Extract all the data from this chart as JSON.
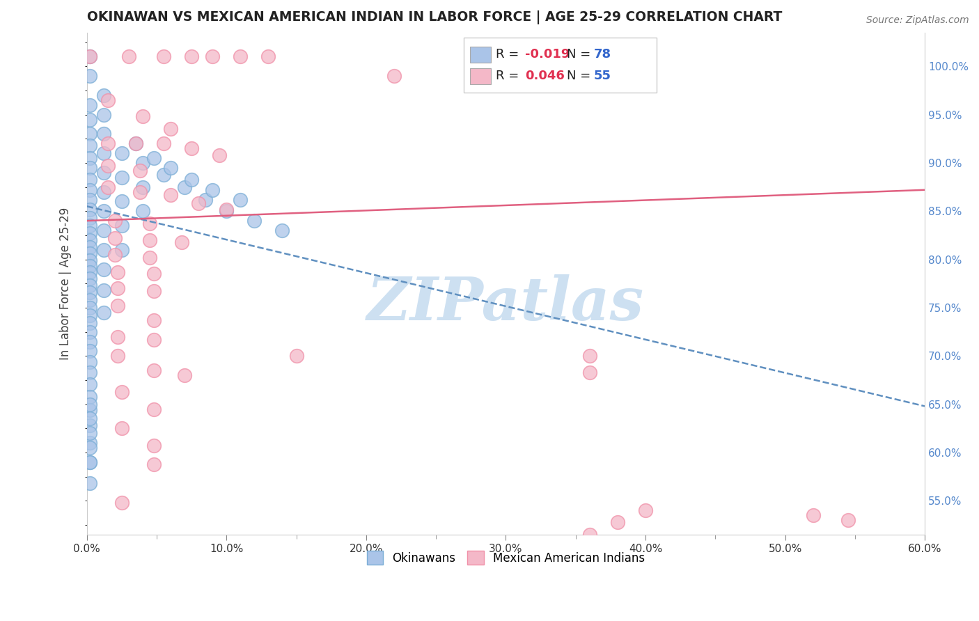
{
  "title": "OKINAWAN VS MEXICAN AMERICAN INDIAN IN LABOR FORCE | AGE 25-29 CORRELATION CHART",
  "source": "Source: ZipAtlas.com",
  "ylabel": "In Labor Force | Age 25-29",
  "xlim": [
    0.0,
    0.6
  ],
  "ylim": [
    0.515,
    1.035
  ],
  "yticks_right": [
    0.55,
    0.6,
    0.65,
    0.7,
    0.75,
    0.8,
    0.85,
    0.9,
    0.95,
    1.0
  ],
  "ytick_labels_right": [
    "55.0%",
    "60.0%",
    "65.0%",
    "70.0%",
    "75.0%",
    "80.0%",
    "85.0%",
    "90.0%",
    "95.0%",
    "100.0%"
  ],
  "xticks": [
    0.0,
    0.1,
    0.2,
    0.3,
    0.4,
    0.5,
    0.6
  ],
  "xtick_labels": [
    "0.0%",
    "10.0%",
    "20.0%",
    "30.0%",
    "40.0%",
    "50.0%",
    "60.0%"
  ],
  "legend_r_entries": [
    {
      "r_val": "-0.019",
      "n_val": "78",
      "color": "#aac4e8"
    },
    {
      "r_val": "0.046",
      "n_val": "55",
      "color": "#f4b8c8"
    }
  ],
  "okinawan_color_fill": "#aac4e8",
  "okinawan_color_edge": "#7baed6",
  "mexican_color_fill": "#f4b8c8",
  "mexican_color_edge": "#f090a8",
  "okinawan_line_color": "#6090c0",
  "mexican_line_color": "#e06080",
  "watermark_text": "ZIPatlas",
  "watermark_color": "#c8ddf0",
  "background_color": "#ffffff",
  "grid_color": "#d8d8d8",
  "title_color": "#222222",
  "ylabel_color": "#444444",
  "source_color": "#777777",
  "right_tick_color": "#5588cc",
  "ok_trend_x0": 0.0,
  "ok_trend_y0": 0.855,
  "ok_trend_x1": 0.6,
  "ok_trend_y1": 0.648,
  "mx_trend_x0": 0.0,
  "mx_trend_y0": 0.84,
  "mx_trend_x1": 0.6,
  "mx_trend_y1": 0.872,
  "okinawan_points": [
    [
      0.002,
      1.01
    ],
    [
      0.002,
      0.99
    ],
    [
      0.002,
      0.96
    ],
    [
      0.002,
      0.945
    ],
    [
      0.002,
      0.93
    ],
    [
      0.002,
      0.918
    ],
    [
      0.002,
      0.905
    ],
    [
      0.002,
      0.895
    ],
    [
      0.002,
      0.883
    ],
    [
      0.002,
      0.872
    ],
    [
      0.002,
      0.862
    ],
    [
      0.002,
      0.852
    ],
    [
      0.002,
      0.843
    ],
    [
      0.002,
      0.835
    ],
    [
      0.002,
      0.827
    ],
    [
      0.002,
      0.82
    ],
    [
      0.002,
      0.813
    ],
    [
      0.002,
      0.806
    ],
    [
      0.002,
      0.799
    ],
    [
      0.002,
      0.793
    ],
    [
      0.002,
      0.787
    ],
    [
      0.002,
      0.78
    ],
    [
      0.002,
      0.773
    ],
    [
      0.002,
      0.766
    ],
    [
      0.002,
      0.758
    ],
    [
      0.002,
      0.75
    ],
    [
      0.002,
      0.742
    ],
    [
      0.002,
      0.734
    ],
    [
      0.002,
      0.725
    ],
    [
      0.002,
      0.715
    ],
    [
      0.002,
      0.705
    ],
    [
      0.002,
      0.694
    ],
    [
      0.002,
      0.683
    ],
    [
      0.002,
      0.671
    ],
    [
      0.002,
      0.658
    ],
    [
      0.002,
      0.644
    ],
    [
      0.002,
      0.628
    ],
    [
      0.002,
      0.61
    ],
    [
      0.002,
      0.59
    ],
    [
      0.002,
      0.568
    ],
    [
      0.012,
      0.97
    ],
    [
      0.012,
      0.95
    ],
    [
      0.012,
      0.93
    ],
    [
      0.012,
      0.91
    ],
    [
      0.012,
      0.89
    ],
    [
      0.012,
      0.87
    ],
    [
      0.012,
      0.85
    ],
    [
      0.012,
      0.83
    ],
    [
      0.012,
      0.81
    ],
    [
      0.012,
      0.79
    ],
    [
      0.012,
      0.768
    ],
    [
      0.012,
      0.745
    ],
    [
      0.025,
      0.91
    ],
    [
      0.025,
      0.885
    ],
    [
      0.025,
      0.86
    ],
    [
      0.025,
      0.835
    ],
    [
      0.025,
      0.81
    ],
    [
      0.04,
      0.9
    ],
    [
      0.04,
      0.875
    ],
    [
      0.04,
      0.85
    ],
    [
      0.055,
      0.888
    ],
    [
      0.07,
      0.875
    ],
    [
      0.085,
      0.862
    ],
    [
      0.1,
      0.85
    ],
    [
      0.12,
      0.84
    ],
    [
      0.14,
      0.83
    ],
    [
      0.035,
      0.92
    ],
    [
      0.048,
      0.905
    ],
    [
      0.06,
      0.895
    ],
    [
      0.075,
      0.883
    ],
    [
      0.09,
      0.872
    ],
    [
      0.11,
      0.862
    ],
    [
      0.002,
      0.65
    ],
    [
      0.002,
      0.635
    ],
    [
      0.002,
      0.62
    ],
    [
      0.002,
      0.605
    ],
    [
      0.002,
      0.59
    ]
  ],
  "mexican_points": [
    [
      0.002,
      1.01
    ],
    [
      0.03,
      1.01
    ],
    [
      0.055,
      1.01
    ],
    [
      0.075,
      1.01
    ],
    [
      0.09,
      1.01
    ],
    [
      0.11,
      1.01
    ],
    [
      0.13,
      1.01
    ],
    [
      0.22,
      0.99
    ],
    [
      0.015,
      0.965
    ],
    [
      0.04,
      0.948
    ],
    [
      0.06,
      0.935
    ],
    [
      0.015,
      0.92
    ],
    [
      0.035,
      0.92
    ],
    [
      0.055,
      0.92
    ],
    [
      0.075,
      0.915
    ],
    [
      0.095,
      0.908
    ],
    [
      0.015,
      0.897
    ],
    [
      0.038,
      0.892
    ],
    [
      0.015,
      0.875
    ],
    [
      0.038,
      0.87
    ],
    [
      0.06,
      0.867
    ],
    [
      0.08,
      0.858
    ],
    [
      0.1,
      0.852
    ],
    [
      0.02,
      0.84
    ],
    [
      0.045,
      0.837
    ],
    [
      0.02,
      0.822
    ],
    [
      0.045,
      0.82
    ],
    [
      0.068,
      0.818
    ],
    [
      0.02,
      0.805
    ],
    [
      0.045,
      0.802
    ],
    [
      0.022,
      0.787
    ],
    [
      0.048,
      0.785
    ],
    [
      0.022,
      0.77
    ],
    [
      0.048,
      0.767
    ],
    [
      0.022,
      0.752
    ],
    [
      0.048,
      0.737
    ],
    [
      0.022,
      0.72
    ],
    [
      0.048,
      0.717
    ],
    [
      0.022,
      0.7
    ],
    [
      0.048,
      0.685
    ],
    [
      0.07,
      0.68
    ],
    [
      0.025,
      0.663
    ],
    [
      0.048,
      0.645
    ],
    [
      0.025,
      0.625
    ],
    [
      0.048,
      0.607
    ],
    [
      0.048,
      0.588
    ],
    [
      0.025,
      0.548
    ],
    [
      0.15,
      0.7
    ],
    [
      0.36,
      0.7
    ],
    [
      0.36,
      0.683
    ],
    [
      0.4,
      0.54
    ],
    [
      0.38,
      0.528
    ],
    [
      0.36,
      0.515
    ],
    [
      0.52,
      0.535
    ],
    [
      0.545,
      0.53
    ]
  ]
}
